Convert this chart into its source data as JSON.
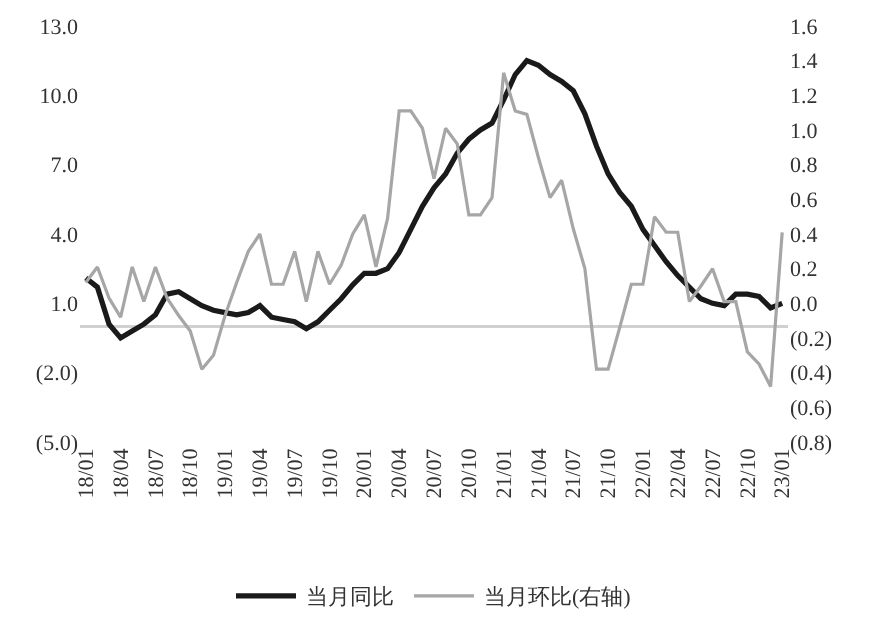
{
  "chart_data": {
    "type": "line",
    "categories": [
      "18/01",
      null,
      null,
      "18/04",
      null,
      null,
      "18/07",
      null,
      null,
      "18/10",
      null,
      null,
      "19/01",
      null,
      null,
      "19/04",
      null,
      null,
      "19/07",
      null,
      null,
      "19/10",
      null,
      null,
      "20/01",
      null,
      null,
      "20/04",
      null,
      null,
      "20/07",
      null,
      null,
      "20/10",
      null,
      null,
      "21/01",
      null,
      null,
      "21/04",
      null,
      null,
      "21/07",
      null,
      null,
      "21/10",
      null,
      null,
      "22/01",
      null,
      null,
      "22/04",
      null,
      null,
      "22/07",
      null,
      null,
      "22/10",
      null,
      null,
      "23/01"
    ],
    "series": [
      {
        "name": "当月同比",
        "color": "#1a1a1a",
        "values": [
          2.1,
          1.7,
          0.1,
          -0.5,
          -0.2,
          0.1,
          0.5,
          1.4,
          1.5,
          1.2,
          0.9,
          0.7,
          0.6,
          0.5,
          0.6,
          0.9,
          0.4,
          0.3,
          0.2,
          -0.1,
          0.2,
          0.7,
          1.2,
          1.8,
          2.3,
          2.3,
          2.5,
          3.2,
          4.2,
          5.2,
          6.0,
          6.6,
          7.5,
          8.1,
          8.5,
          8.8,
          9.8,
          10.9,
          11.5,
          11.3,
          10.9,
          10.6,
          10.2,
          9.2,
          7.8,
          6.6,
          5.8,
          5.2,
          4.2,
          3.5,
          2.8,
          2.2,
          1.7,
          1.2,
          1.0,
          0.9,
          1.4,
          1.4,
          1.3,
          0.8,
          1.0
        ]
      },
      {
        "name": "当月环比(右轴)",
        "color": "#a6a6a6",
        "axis": "y2",
        "values": [
          0.12,
          0.21,
          0.03,
          -0.08,
          0.21,
          0.01,
          0.21,
          0.03,
          -0.07,
          -0.16,
          -0.38,
          -0.3,
          -0.07,
          0.12,
          0.3,
          0.4,
          0.11,
          0.11,
          0.3,
          0.01,
          0.3,
          0.11,
          0.22,
          0.4,
          0.51,
          0.21,
          0.49,
          1.11,
          1.11,
          1.01,
          0.72,
          1.01,
          0.92,
          0.51,
          0.51,
          0.61,
          1.33,
          1.11,
          1.09,
          0.84,
          0.61,
          0.71,
          0.43,
          0.2,
          -0.38,
          -0.38,
          -0.14,
          0.11,
          0.11,
          0.5,
          0.41,
          0.41,
          0.01,
          0.1,
          0.2,
          0.01,
          0.01,
          -0.28,
          -0.35,
          -0.48,
          0.41
        ]
      }
    ],
    "ylim": [
      -5,
      13
    ],
    "yticks": [
      {
        "value": -5,
        "label": "(5.0)"
      },
      {
        "value": -2,
        "label": "(2.0)"
      },
      {
        "value": 1,
        "label": "1.0"
      },
      {
        "value": 4,
        "label": "4.0"
      },
      {
        "value": 7,
        "label": "7.0"
      },
      {
        "value": 10,
        "label": "10.0"
      },
      {
        "value": 13,
        "label": "13.0"
      }
    ],
    "y2lim": [
      -0.8,
      1.6
    ],
    "y2ticks": [
      {
        "value": -0.8,
        "label": "(0.8)"
      },
      {
        "value": -0.6,
        "label": "(0.6)"
      },
      {
        "value": -0.4,
        "label": "(0.4)"
      },
      {
        "value": -0.2,
        "label": "(0.2)"
      },
      {
        "value": 0,
        "label": "0.0"
      },
      {
        "value": 0.2,
        "label": "0.2"
      },
      {
        "value": 0.4,
        "label": "0.4"
      },
      {
        "value": 0.6,
        "label": "0.6"
      },
      {
        "value": 0.8,
        "label": "0.8"
      },
      {
        "value": 1.0,
        "label": "1.0"
      },
      {
        "value": 1.2,
        "label": "1.2"
      },
      {
        "value": 1.4,
        "label": "1.4"
      },
      {
        "value": 1.6,
        "label": "1.6"
      }
    ],
    "ref_lines": [
      {
        "axis": "y",
        "value": 0,
        "label": null,
        "color": "#d0d0d0"
      }
    ],
    "grid": false,
    "legend": "bottom",
    "marker": "none",
    "line_style": "solid"
  }
}
